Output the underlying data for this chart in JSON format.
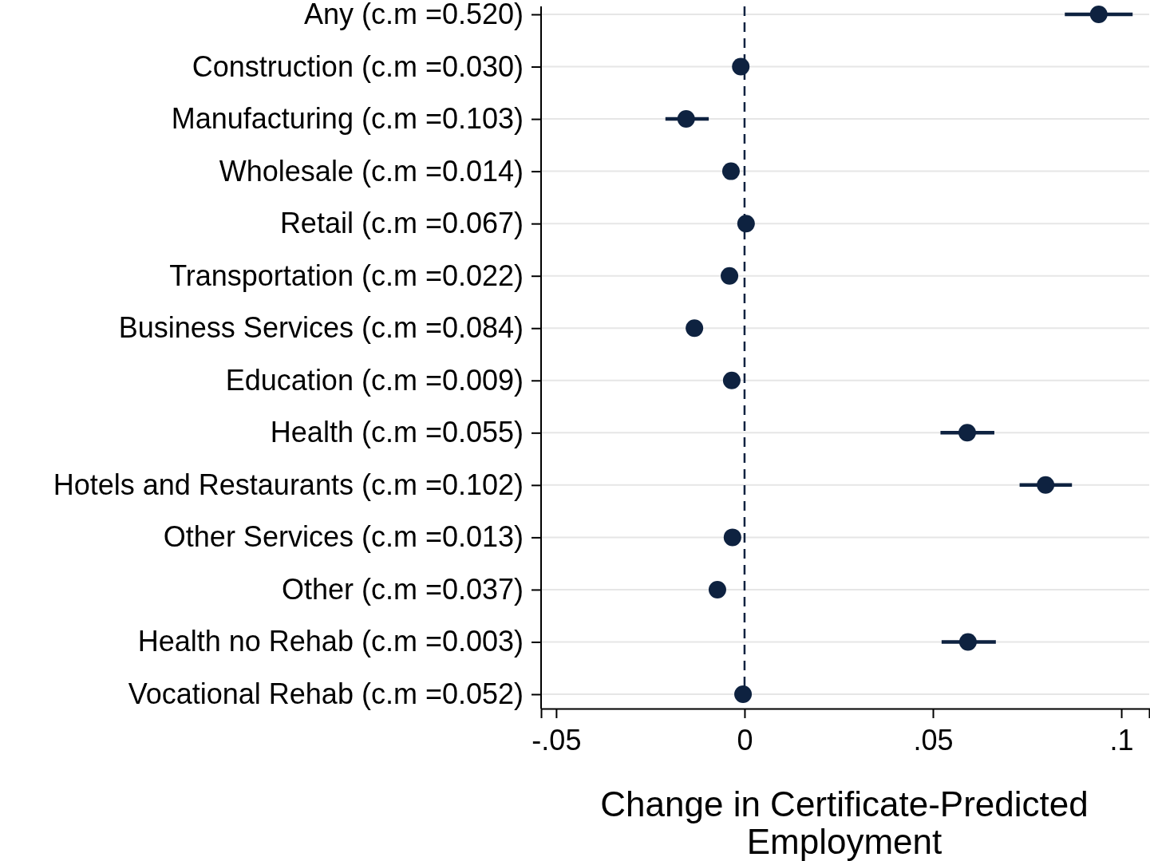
{
  "chart_data": {
    "type": "scatter",
    "orientation": "horizontal",
    "xlabel": "Change in Certificate-Predicted Employment",
    "categories": [
      "Any (c.m =0.520)",
      "Construction (c.m =0.030)",
      "Manufacturing (c.m =0.103)",
      "Wholesale (c.m =0.014)",
      "Retail (c.m =0.067)",
      "Transportation (c.m =0.022)",
      "Business Services (c.m =0.084)",
      "Education (c.m =0.009)",
      "Health (c.m =0.055)",
      "Hotels and Restaurants (c.m =0.102)",
      "Other Services (c.m =0.013)",
      "Other (c.m =0.037)",
      "Health no Rehab (c.m =0.003)",
      "Vocational Rehab (c.m =0.052)"
    ],
    "series": [
      {
        "color": "#0e2240",
        "values": [
          0.094,
          -0.001,
          -0.0155,
          -0.0036,
          0.0004,
          -0.004,
          -0.0133,
          -0.0034,
          0.0591,
          0.0799,
          -0.0032,
          -0.0072,
          0.0593,
          -0.0004
        ],
        "errors": [
          [
            0.085,
            0.103
          ],
          null,
          [
            -0.021,
            -0.0095
          ],
          null,
          null,
          null,
          null,
          null,
          [
            0.052,
            0.0663
          ],
          [
            0.073,
            0.0869
          ],
          null,
          null,
          [
            0.0523,
            0.0667
          ],
          null
        ]
      }
    ],
    "xlim": [
      -0.054,
      0.1074
    ],
    "xticks": [
      {
        "value": -0.05,
        "label": "-.05"
      },
      0,
      {
        "value": 0.05,
        "label": ".05"
      },
      {
        "value": 0.1,
        "label": ".1"
      }
    ],
    "ref_lines": [
      {
        "axis": "x",
        "value": 0,
        "color": "#0e2240",
        "line_style": "dashed"
      }
    ],
    "grid": "y",
    "marker": "circle"
  }
}
